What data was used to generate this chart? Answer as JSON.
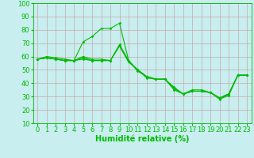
{
  "xlabel": "Humidité relative (%)",
  "background_color": "#c8eef0",
  "grid_color": "#c8a8a8",
  "line_color": "#00bb00",
  "xlim": [
    -0.5,
    23.5
  ],
  "ylim": [
    10,
    100
  ],
  "xticks": [
    0,
    1,
    2,
    3,
    4,
    5,
    6,
    7,
    8,
    9,
    10,
    11,
    12,
    13,
    14,
    15,
    16,
    17,
    18,
    19,
    20,
    21,
    22,
    23
  ],
  "yticks": [
    10,
    20,
    30,
    40,
    50,
    60,
    70,
    80,
    90,
    100
  ],
  "series": [
    [
      58,
      60,
      59,
      58,
      57,
      71,
      75,
      81,
      81,
      85,
      57,
      49,
      45,
      43,
      43,
      37,
      32,
      35,
      35,
      33,
      29,
      32,
      46,
      46
    ],
    [
      58,
      59,
      58,
      57,
      57,
      60,
      58,
      58,
      57,
      69,
      57,
      50,
      45,
      43,
      43,
      36,
      32,
      34,
      34,
      33,
      29,
      32,
      46,
      46
    ],
    [
      58,
      59,
      58,
      57,
      57,
      59,
      57,
      57,
      57,
      68,
      56,
      50,
      45,
      43,
      43,
      36,
      32,
      34,
      34,
      33,
      29,
      31,
      46,
      46
    ],
    [
      58,
      59,
      58,
      57,
      57,
      58,
      57,
      57,
      57,
      68,
      56,
      50,
      44,
      43,
      43,
      35,
      32,
      34,
      34,
      33,
      28,
      31,
      46,
      46
    ]
  ],
  "tick_fontsize": 6,
  "xlabel_fontsize": 7
}
